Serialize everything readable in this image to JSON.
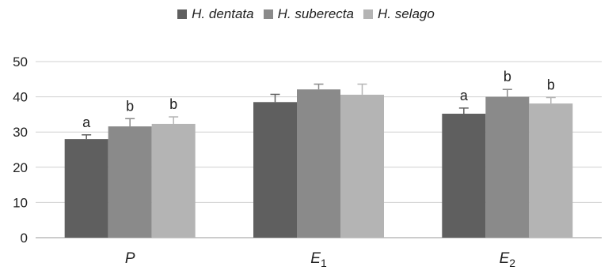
{
  "chart_data": {
    "type": "bar",
    "categories": [
      "P",
      "E1",
      "E2"
    ],
    "category_labels": [
      {
        "main": "P",
        "sub": ""
      },
      {
        "main": "E",
        "sub": "1"
      },
      {
        "main": "E",
        "sub": "2"
      }
    ],
    "series": [
      {
        "name": "H. dentata",
        "color": "#5f5f5f",
        "values": [
          28,
          38.5,
          35.2
        ],
        "errors": [
          1.2,
          2.2,
          1.6
        ],
        "letters": [
          "a",
          "",
          "a"
        ]
      },
      {
        "name": "H. suberecta",
        "color": "#8a8a8a",
        "values": [
          31.6,
          42.1,
          40.0
        ],
        "errors": [
          2.2,
          1.5,
          2.1
        ],
        "letters": [
          "b",
          "",
          "b"
        ]
      },
      {
        "name": "H. selago",
        "color": "#b4b4b4",
        "values": [
          32.3,
          40.6,
          38.1
        ],
        "errors": [
          2.0,
          3.0,
          1.7
        ],
        "letters": [
          "b",
          "",
          "b"
        ]
      }
    ],
    "yticks": [
      0,
      10,
      20,
      30,
      40,
      50
    ],
    "ylim": [
      0,
      50
    ],
    "grid": true,
    "legend_position": "top",
    "title": "",
    "xlabel": "",
    "ylabel": ""
  }
}
